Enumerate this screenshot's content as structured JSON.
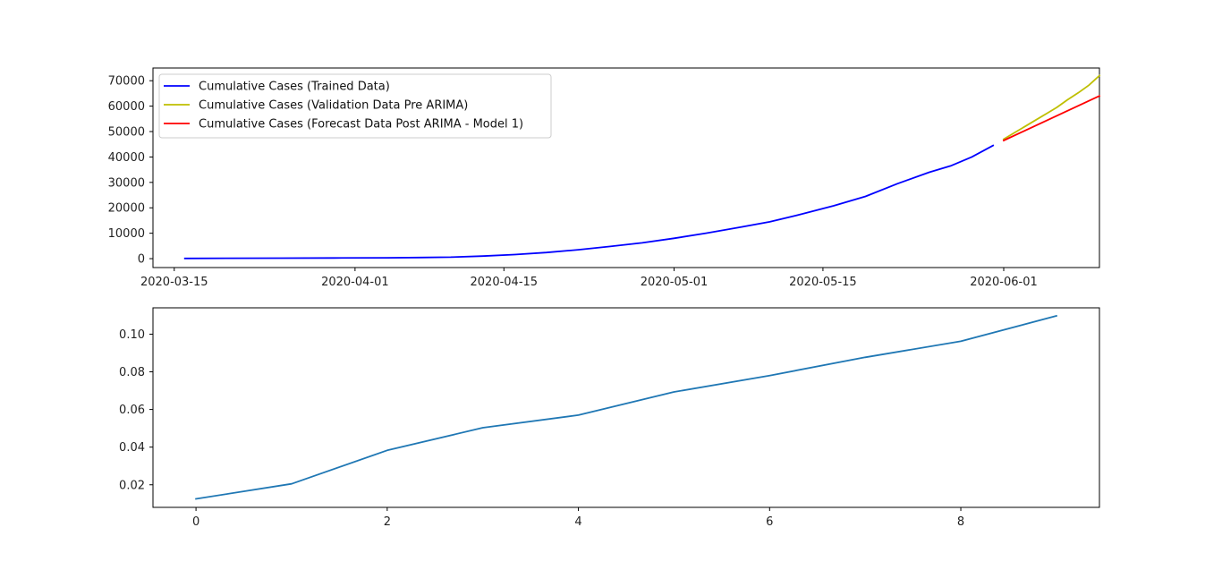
{
  "chart_data": [
    {
      "type": "line",
      "x_axis": "date",
      "xlim": [
        "2020-03-13",
        "2020-06-10"
      ],
      "ylim": [
        -3500,
        75000
      ],
      "x_ticks": [
        "2020-03-15",
        "2020-04-01",
        "2020-04-15",
        "2020-05-01",
        "2020-05-15",
        "2020-06-01"
      ],
      "y_ticks": [
        0,
        10000,
        20000,
        30000,
        40000,
        50000,
        60000,
        70000
      ],
      "grid": false,
      "legend_position": "top-left",
      "series": [
        {
          "name": "Cumulative Cases (Trained Data)",
          "color": "#0000ff",
          "points": [
            [
              "2020-03-16",
              100
            ],
            [
              "2020-03-20",
              150
            ],
            [
              "2020-03-25",
              200
            ],
            [
              "2020-03-30",
              250
            ],
            [
              "2020-04-04",
              350
            ],
            [
              "2020-04-07",
              450
            ],
            [
              "2020-04-10",
              600
            ],
            [
              "2020-04-13",
              1000
            ],
            [
              "2020-04-16",
              1600
            ],
            [
              "2020-04-19",
              2400
            ],
            [
              "2020-04-22",
              3500
            ],
            [
              "2020-04-25",
              4800
            ],
            [
              "2020-04-28",
              6200
            ],
            [
              "2020-05-01",
              8000
            ],
            [
              "2020-05-04",
              10000
            ],
            [
              "2020-05-07",
              12200
            ],
            [
              "2020-05-10",
              14500
            ],
            [
              "2020-05-13",
              17500
            ],
            [
              "2020-05-16",
              20800
            ],
            [
              "2020-05-19",
              24500
            ],
            [
              "2020-05-22",
              29500
            ],
            [
              "2020-05-25",
              34000
            ],
            [
              "2020-05-27",
              36500
            ],
            [
              "2020-05-29",
              40000
            ],
            [
              "2020-05-31",
              44500
            ]
          ]
        },
        {
          "name": "Cumulative Cases (Validation Data Pre ARIMA)",
          "color": "#bfbf00",
          "points": [
            [
              "2020-06-01",
              47000
            ],
            [
              "2020-06-02",
              49500
            ],
            [
              "2020-06-03",
              52000
            ],
            [
              "2020-06-04",
              54500
            ],
            [
              "2020-06-05",
              57000
            ],
            [
              "2020-06-06",
              59500
            ],
            [
              "2020-06-07",
              62500
            ],
            [
              "2020-06-08",
              65200
            ],
            [
              "2020-06-09",
              68200
            ],
            [
              "2020-06-10",
              72000
            ]
          ]
        },
        {
          "name": "Cumulative Cases (Forecast Data Post ARIMA - Model 1)",
          "color": "#ff0000",
          "points": [
            [
              "2020-06-01",
              46500
            ],
            [
              "2020-06-10",
              64000
            ]
          ]
        }
      ]
    },
    {
      "type": "line",
      "xlim": [
        -0.45,
        9.45
      ],
      "ylim": [
        0.008,
        0.114
      ],
      "x_ticks": [
        0,
        2,
        4,
        6,
        8
      ],
      "y_ticks": [
        0.02,
        0.04,
        0.06,
        0.08,
        0.1
      ],
      "y_tick_labels": [
        "0.02",
        "0.04",
        "0.06",
        "0.08",
        "0.10"
      ],
      "grid": false,
      "series": [
        {
          "color": "#1f77b4",
          "x": [
            0,
            1,
            2,
            3,
            4,
            5,
            6,
            7,
            8,
            9
          ],
          "values": [
            0.0125,
            0.0205,
            0.0383,
            0.0503,
            0.057,
            0.0693,
            0.078,
            0.0877,
            0.0962,
            0.1097
          ]
        }
      ]
    }
  ]
}
